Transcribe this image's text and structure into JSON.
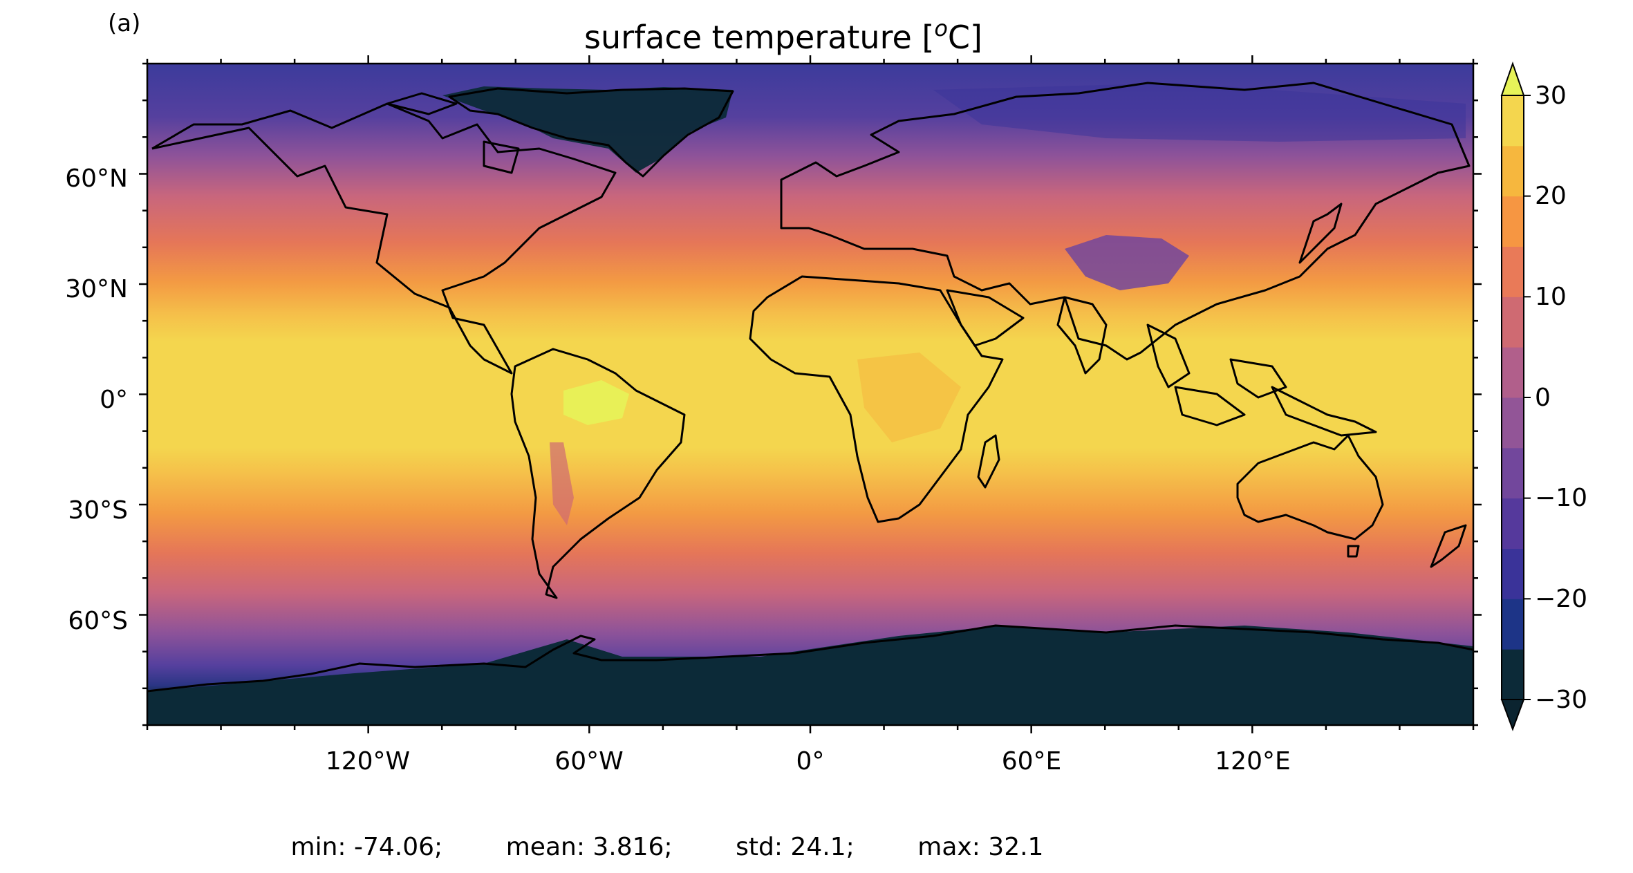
{
  "figure": {
    "panel_label": "(a)",
    "title_text": "surface temperature [",
    "title_sup": "o",
    "title_unit": "C]",
    "stats": {
      "min_text": "min: -74.06;",
      "mean_text": "mean: 3.816;",
      "std_text": "std: 24.1;",
      "max_text": "max: 32.1"
    }
  },
  "map": {
    "projection": "PlateCarree",
    "lon_range": [
      -180,
      180
    ],
    "lat_range": [
      -90,
      90
    ],
    "x_ticks": [
      "120°W",
      "60°W",
      "0°",
      "60°E",
      "120°E"
    ],
    "y_ticks": [
      "60°N",
      "30°N",
      "0°",
      "30°S",
      "60°S"
    ],
    "coastlines": true,
    "colorbar": {
      "ticks": [
        "30",
        "20",
        "10",
        "0",
        "−10",
        "−20",
        "−30"
      ],
      "levels": [
        -30,
        -25,
        -20,
        -15,
        -10,
        -5,
        0,
        5,
        10,
        15,
        20,
        25,
        30
      ],
      "extend": "both",
      "colors": [
        "#0c2a38",
        "#1d3487",
        "#3a3399",
        "#55399c",
        "#72479c",
        "#925597",
        "#b15f8b",
        "#cf6a72",
        "#e97a58",
        "#f69642",
        "#f6b73e",
        "#f4d64e",
        "#e7f359",
        "#0b2430"
      ]
    }
  }
}
